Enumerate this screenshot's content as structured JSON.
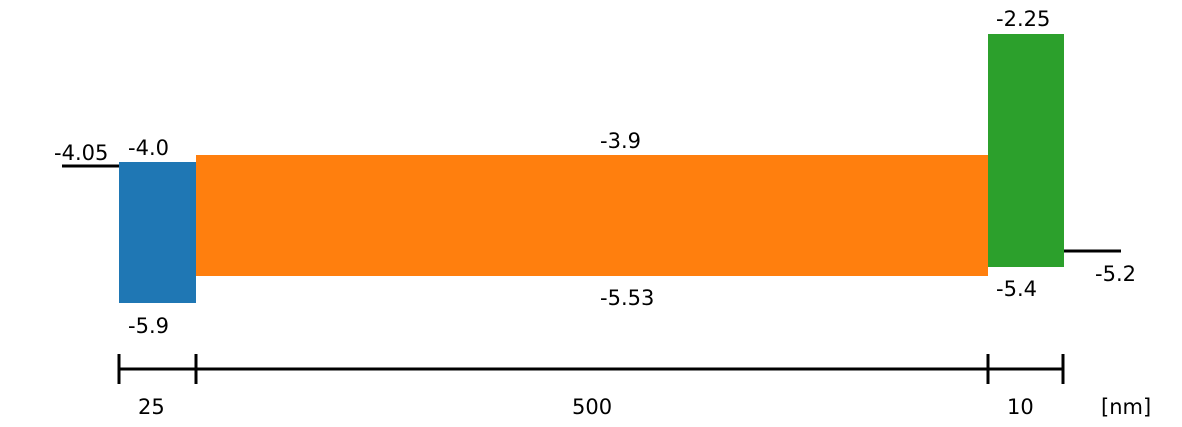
{
  "chart_data": {
    "type": "energy-band-diagram",
    "left_electrode": {
      "level": -4.05,
      "label": "-4.05"
    },
    "right_electrode": {
      "level": -5.2,
      "label": "-5.2"
    },
    "layers": [
      {
        "thickness": 25,
        "thickness_label": "25",
        "top": -4.0,
        "top_label": "-4.0",
        "bottom": -5.9,
        "bottom_label": "-5.9",
        "color": "#1f77b4"
      },
      {
        "thickness": 500,
        "thickness_label": "500",
        "top": -3.9,
        "top_label": "-3.9",
        "bottom": -5.53,
        "bottom_label": "-5.53",
        "color": "#ff7f0e"
      },
      {
        "thickness": 10,
        "thickness_label": "10",
        "top": -2.25,
        "top_label": "-2.25",
        "bottom": -5.4,
        "bottom_label": "-5.4",
        "color": "#2ca02c"
      }
    ],
    "unit_label": "[nm]"
  }
}
